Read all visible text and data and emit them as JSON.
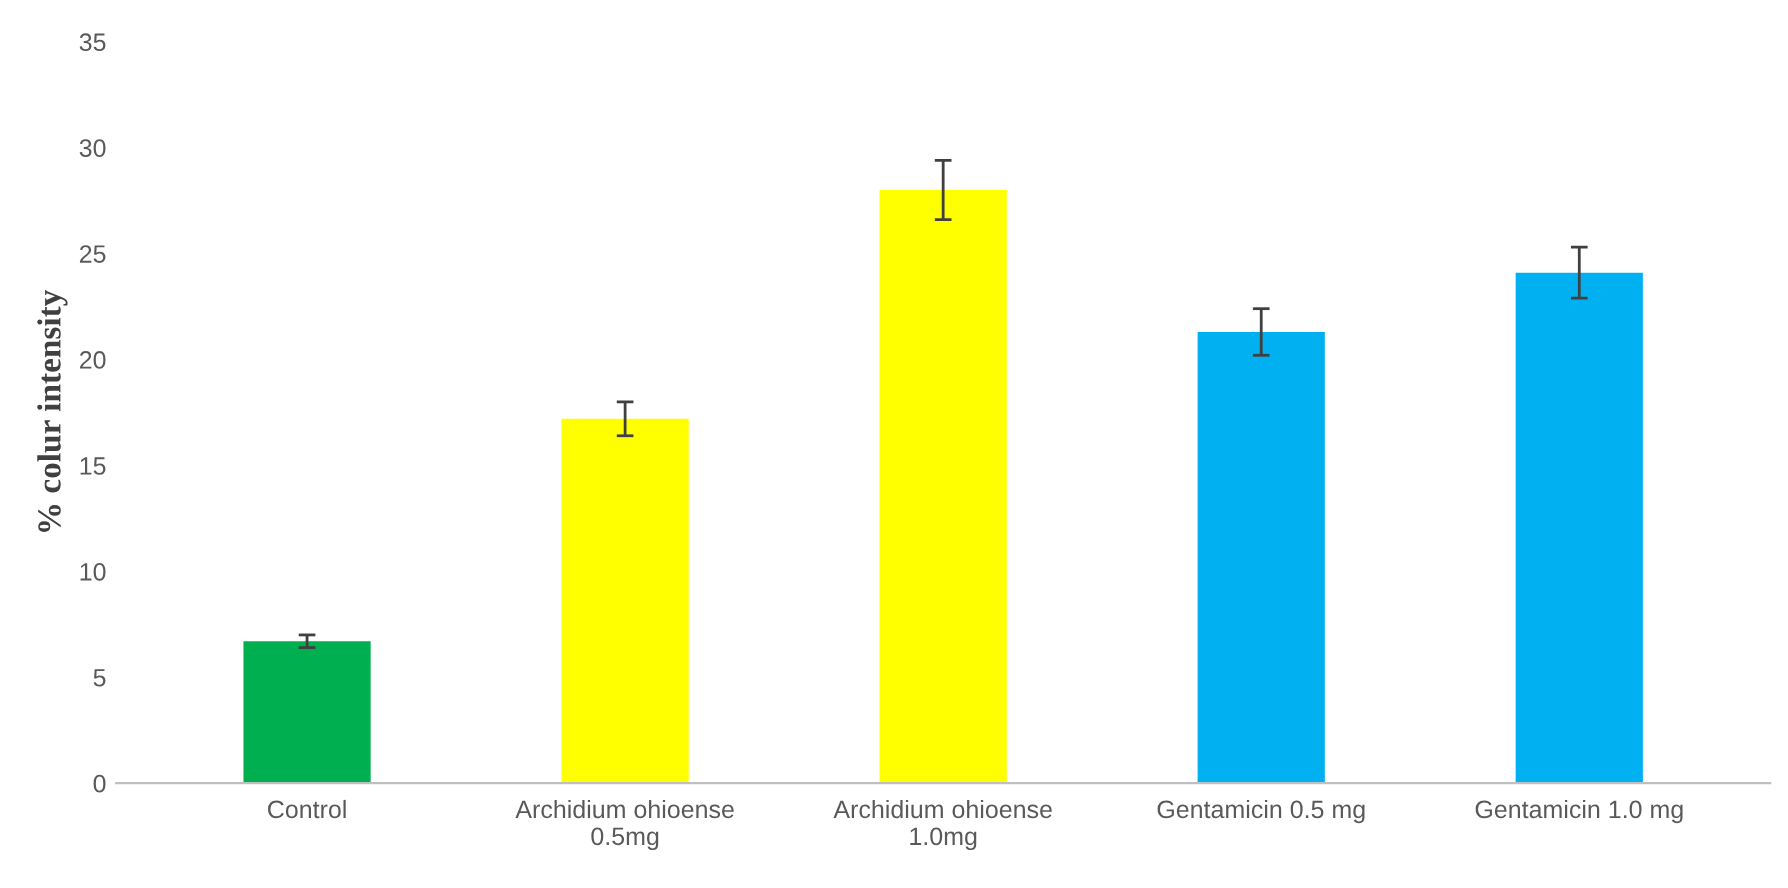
{
  "chart_data": {
    "type": "bar",
    "ylabel": "% colur intensity",
    "categories": [
      "Control",
      "Archidium ohioense\n0.5mg",
      "Archidium ohioense\n1.0mg",
      "Gentamicin 0.5 mg",
      "Gentamicin 1.0 mg"
    ],
    "values": [
      6.7,
      17.2,
      28.0,
      21.3,
      24.1
    ],
    "errors": [
      0.3,
      0.8,
      1.4,
      1.1,
      1.2
    ],
    "colors": [
      "#00b050",
      "#ffff00",
      "#ffff00",
      "#00b0f0",
      "#00b0f0"
    ],
    "ylim": [
      0,
      35
    ],
    "yticks": [
      0,
      5,
      10,
      15,
      20,
      25,
      30,
      35
    ],
    "grid": false
  }
}
